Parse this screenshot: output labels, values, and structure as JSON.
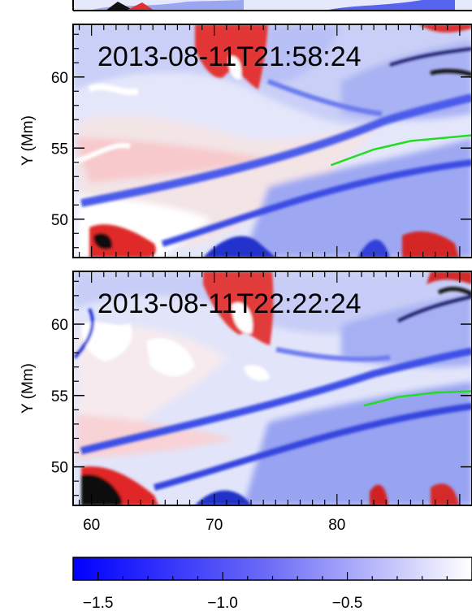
{
  "chart_data": [
    {
      "type": "heatmap",
      "timestamp": "2013-08-11T21:58:24",
      "ylabel": "Y (Mm)",
      "xlim": [
        58.5,
        91
      ],
      "ylim": [
        47.3,
        63.7
      ],
      "yticks": [
        "50",
        "55",
        "60"
      ],
      "yticks_values": [
        50,
        55,
        60
      ],
      "line_color": "#22dd22",
      "line_points": [
        [
          79.5,
          53.8
        ],
        [
          83,
          54.9
        ],
        [
          86,
          55.5
        ],
        [
          91,
          55.9
        ]
      ]
    },
    {
      "type": "heatmap",
      "timestamp": "2013-08-11T22:22:24",
      "ylabel": "Y (Mm)",
      "xlim": [
        58.5,
        91
      ],
      "ylim": [
        47.3,
        63.7
      ],
      "yticks": [
        "50",
        "55",
        "60"
      ],
      "yticks_values": [
        50,
        55,
        60
      ],
      "xticks": [
        "60",
        "70",
        "80"
      ],
      "xticks_values": [
        60,
        70,
        80
      ],
      "line_color": "#22dd22",
      "line_points": [
        [
          82.2,
          54.3
        ],
        [
          85,
          54.9
        ],
        [
          88,
          55.2
        ],
        [
          91,
          55.3
        ]
      ]
    }
  ],
  "colorbar": {
    "min": -1.6,
    "max": 0.0,
    "ticks": [
      "−1.5",
      "−1.0",
      "−0.5"
    ],
    "ticks_values": [
      -1.5,
      -1.0,
      -0.5
    ],
    "low_color": "#0000ff",
    "high_color": "#ffffff"
  }
}
